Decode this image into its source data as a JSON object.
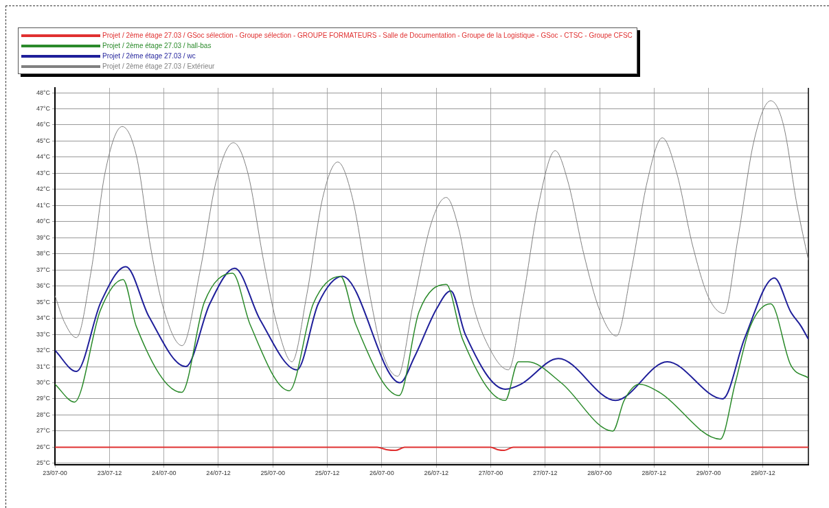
{
  "chart_data": {
    "type": "line",
    "xlim": [
      "--07-23T00:00",
      "--07-29T22:00"
    ],
    "xticks": [
      {
        "value": "--07-23T00:00",
        "label": "23/07-00"
      },
      {
        "value": "--07-23T12:00",
        "label": "23/07-12"
      },
      {
        "value": "--07-24T00:00",
        "label": "24/07-00"
      },
      {
        "value": "--07-24T12:00",
        "label": "24/07-12"
      },
      {
        "value": "--07-25T00:00",
        "label": "25/07-00"
      },
      {
        "value": "--07-25T12:00",
        "label": "25/07-12"
      },
      {
        "value": "--07-26T00:00",
        "label": "26/07-00"
      },
      {
        "value": "--07-26T12:00",
        "label": "26/07-12"
      },
      {
        "value": "--07-27T00:00",
        "label": "27/07-00"
      },
      {
        "value": "--07-27T12:00",
        "label": "27/07-12"
      },
      {
        "value": "--07-28T00:00",
        "label": "28/07-00"
      },
      {
        "value": "--07-28T12:00",
        "label": "28/07-12"
      },
      {
        "value": "--07-29T00:00",
        "label": "29/07-00"
      },
      {
        "value": "--07-29T12:00",
        "label": "29/07-12"
      }
    ],
    "ylim": [
      24.9,
      48.3
    ],
    "yticks": [
      {
        "value": 25,
        "label": "25°C"
      },
      {
        "value": 26,
        "label": "26°C"
      },
      {
        "value": 27,
        "label": "27°C"
      },
      {
        "value": 28,
        "label": "28°C"
      },
      {
        "value": 29,
        "label": "29°C"
      },
      {
        "value": 30,
        "label": "30°C"
      },
      {
        "value": 31,
        "label": "31°C"
      },
      {
        "value": 32,
        "label": "32°C"
      },
      {
        "value": 33,
        "label": "33°C"
      },
      {
        "value": 34,
        "label": "34°C"
      },
      {
        "value": 35,
        "label": "35°C"
      },
      {
        "value": 36,
        "label": "36°C"
      },
      {
        "value": 37,
        "label": "37°C"
      },
      {
        "value": 38,
        "label": "38°C"
      },
      {
        "value": 39,
        "label": "39°C"
      },
      {
        "value": 40,
        "label": "40°C"
      },
      {
        "value": 41,
        "label": "41°C"
      },
      {
        "value": 42,
        "label": "42°C"
      },
      {
        "value": 43,
        "label": "43°C"
      },
      {
        "value": 44,
        "label": "44°C"
      },
      {
        "value": 45,
        "label": "45°C"
      },
      {
        "value": 46,
        "label": "46°C"
      },
      {
        "value": 47,
        "label": "47°C"
      },
      {
        "value": 48,
        "label": "48°C"
      }
    ],
    "grid": true,
    "legend": "top left",
    "marker": "none",
    "line_style": "solid",
    "series": [
      {
        "name": "Projet / 2ème étage 27.03 / GSoc sélection - Groupe sélection - GROUPE FORMATEURS - Salle de Documentation - Groupe de la Logistique - GSoc - CTSC - Groupe CFSC",
        "color": "#e03030",
        "x": [
          "--07-23T00:00",
          "--07-25T23:00",
          "--07-26T01:00",
          "--07-26T03:00",
          "--07-26T04:30",
          "--07-26T05:00",
          "--07-27T00:00",
          "--07-27T01:30",
          "--07-27T03:00",
          "--07-27T05:00",
          "--07-29T22:00"
        ],
        "values": [
          26,
          26,
          25.85,
          25.8,
          25.95,
          26,
          26,
          25.85,
          25.8,
          26,
          26
        ]
      },
      {
        "name": "Projet / 2ème étage 27.03 / hall-bas",
        "color": "#2a8a2a",
        "x": [
          "--07-23T00:00",
          "--07-23T04:18",
          "--07-23T10:00",
          "--07-23T15:00",
          "--07-23T17:54",
          "--07-24T03:54",
          "--07-24T08:54",
          "--07-24T15:06",
          "--07-24T19:00",
          "--07-25T03:36",
          "--07-25T08:54",
          "--07-25T14:54",
          "--07-25T18:18",
          "--07-26T03:48",
          "--07-26T08:12",
          "--07-26T14:12",
          "--07-26T17:48",
          "--07-27T03:12",
          "--07-27T06:06",
          "--07-27T08:12",
          "--07-27T15:30",
          "--07-28T02:54",
          "--07-28T05:24",
          "--07-28T08:42",
          "--07-28T13:12",
          "--07-29T02:36",
          "--07-29T05:54",
          "--07-29T09:12",
          "--07-29T13:42",
          "--07-29T18:06",
          "--07-29T22:00"
        ],
        "values": [
          29.9,
          28.8,
          34.5,
          36.4,
          33.5,
          29.4,
          35.0,
          36.8,
          33.6,
          29.5,
          34.9,
          36.6,
          33.6,
          29.2,
          34.4,
          36.1,
          32.7,
          28.9,
          31.3,
          31.3,
          30.0,
          27.0,
          28.9,
          29.9,
          29.4,
          26.5,
          30.0,
          33.5,
          34.9,
          31.1,
          30.3
        ]
      },
      {
        "name": "Projet / 2ème étage 27.03 / wc",
        "color": "#1f1f9a",
        "x": [
          "--07-23T00:00",
          "--07-23T04:42",
          "--07-23T10:06",
          "--07-23T15:36",
          "--07-23T20:42",
          "--07-24T04:48",
          "--07-24T10:06",
          "--07-24T15:36",
          "--07-24T21:12",
          "--07-25T05:18",
          "--07-25T10:00",
          "--07-25T15:18",
          "--07-26T04:00",
          "--07-26T07:12",
          "--07-26T12:06",
          "--07-26T15:12",
          "--07-26T18:24",
          "--07-27T03:12",
          "--07-27T06:36",
          "--07-27T14:54",
          "--07-28T03:30",
          "--07-28T14:54",
          "--07-29T03:06",
          "--07-29T08:00",
          "--07-29T14:30",
          "--07-29T18:06",
          "--07-29T20:24",
          "--07-29T22:00"
        ],
        "values": [
          32.0,
          30.7,
          35.0,
          37.2,
          34.1,
          31.0,
          34.9,
          37.1,
          33.9,
          30.8,
          34.9,
          36.6,
          30.0,
          31.6,
          34.6,
          35.7,
          33.0,
          29.6,
          29.9,
          31.5,
          28.9,
          31.3,
          29.0,
          32.8,
          36.5,
          34.4,
          33.5,
          32.7
        ]
      },
      {
        "name": "Projet / 2ème étage 27.03 / Extérieur",
        "color": "#808080",
        "x": [
          "--07-23T00:00",
          "--07-23T02:00",
          "--07-23T04:42",
          "--07-23T08:00",
          "--07-23T11:00",
          "--07-23T14:48",
          "--07-23T18:00",
          "--07-23T21:00",
          "--07-24T00:00",
          "--07-24T04:00",
          "--07-24T08:00",
          "--07-24T11:30",
          "--07-24T15:18",
          "--07-24T18:30",
          "--07-24T22:00",
          "--07-25T01:00",
          "--07-25T04:12",
          "--07-25T07:30",
          "--07-25T11:00",
          "--07-25T14:18",
          "--07-25T17:30",
          "--07-25T21:00",
          "--07-26T00:00",
          "--07-26T03:30",
          "--07-26T07:00",
          "--07-26T11:00",
          "--07-26T14:12",
          "--07-26T17:00",
          "--07-26T20:00",
          "--07-27T00:00",
          "--07-27T03:54",
          "--07-27T07:00",
          "--07-27T10:30",
          "--07-27T14:12",
          "--07-27T17:00",
          "--07-27T20:30",
          "--07-28T00:00",
          "--07-28T03:42",
          "--07-28T07:00",
          "--07-28T10:30",
          "--07-28T13:48",
          "--07-28T17:00",
          "--07-28T20:30",
          "--07-29T00:00",
          "--07-29T03:24",
          "--07-29T06:30",
          "--07-29T10:00",
          "--07-29T13:42",
          "--07-29T16:30",
          "--07-29T19:30",
          "--07-29T22:00"
        ],
        "values": [
          35.4,
          33.8,
          32.8,
          37,
          43,
          45.9,
          44,
          38.5,
          34.5,
          32.3,
          37,
          42.5,
          44.9,
          43,
          37.5,
          33.5,
          31.3,
          35.5,
          41.5,
          43.7,
          41.5,
          36,
          32,
          30.4,
          35,
          40,
          41.5,
          39.5,
          35,
          32,
          30.8,
          35,
          41,
          44.4,
          42.5,
          38,
          34.5,
          32.9,
          37,
          42.5,
          45.2,
          43,
          38.5,
          35.3,
          34.3,
          39,
          45,
          47.5,
          46,
          41,
          37.6
        ]
      }
    ]
  }
}
